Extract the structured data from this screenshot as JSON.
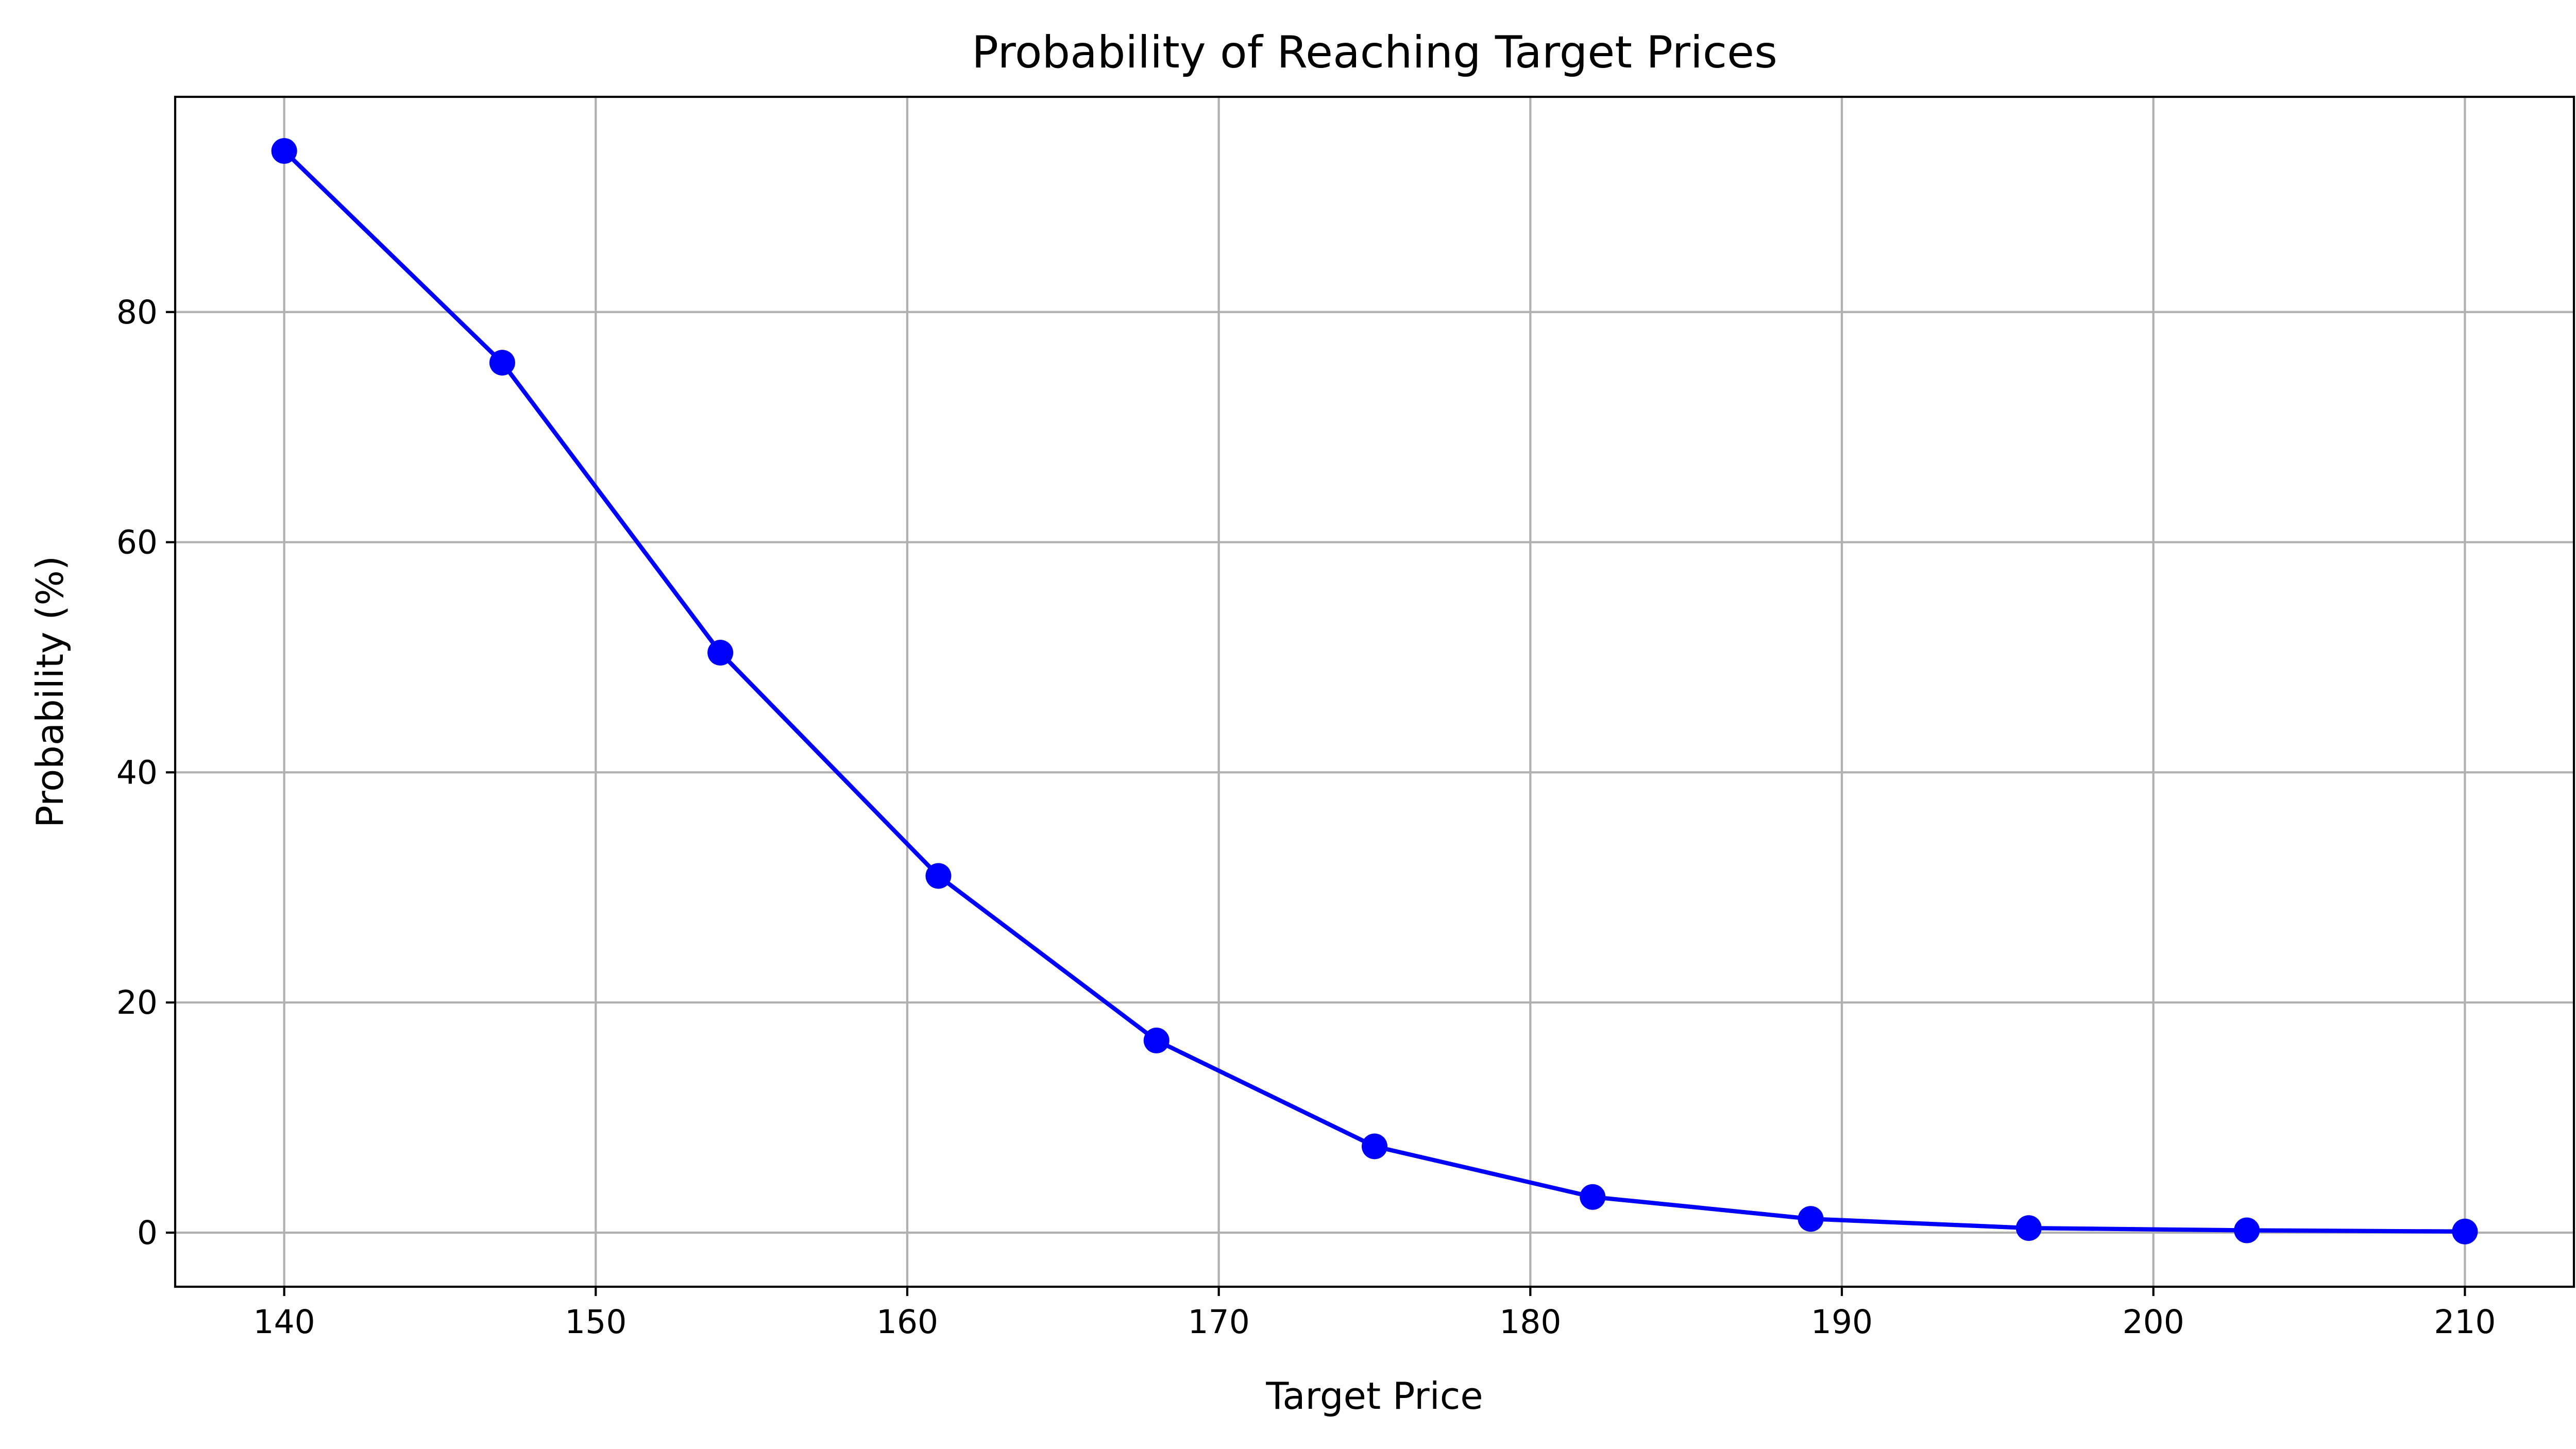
{
  "chart_data": {
    "type": "line",
    "title": "Probability of Reaching Target Prices",
    "xlabel": "Target Price",
    "ylabel": "Probability (%)",
    "xlim": [
      136.5,
      213.5
    ],
    "ylim": [
      -4.7,
      98.7
    ],
    "xticks": [
      140,
      150,
      160,
      170,
      180,
      190,
      200,
      210
    ],
    "yticks": [
      0,
      20,
      40,
      60,
      80
    ],
    "grid": true,
    "series": [
      {
        "color": "#0000ff",
        "marker": "circle",
        "x": [
          140,
          147,
          154,
          161,
          168,
          175,
          182,
          189,
          196,
          203,
          210
        ],
        "y": [
          94.0,
          75.6,
          50.4,
          31.0,
          16.7,
          7.5,
          3.1,
          1.2,
          0.4,
          0.2,
          0.1
        ]
      }
    ]
  }
}
